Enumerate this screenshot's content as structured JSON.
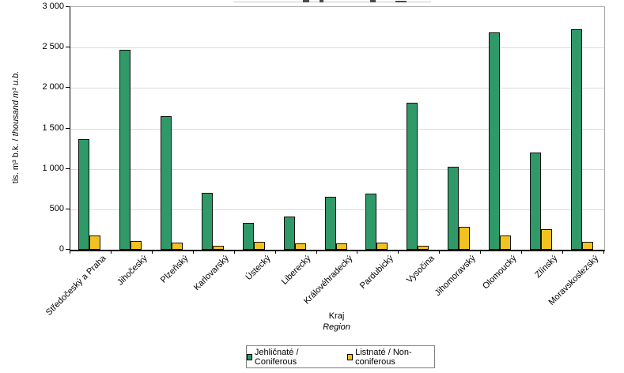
{
  "chart_data": {
    "type": "bar",
    "title_note": "",
    "categories": [
      "Středočeský a Praha",
      "Jihočeský",
      "Plzeňský",
      "Karlovarský",
      "Ústecký",
      "Liberecký",
      "Královéhradecký",
      "Pardubický",
      "Vysočina",
      "Jihomoravský",
      "Olomoucký",
      "Zlínský",
      "Moravskoslezský"
    ],
    "series": [
      {
        "name": "Jehličnaté / Coniferous",
        "color": "#2F9968",
        "values": [
          1370,
          2470,
          1650,
          700,
          330,
          410,
          650,
          690,
          1820,
          1030,
          2690,
          1200,
          2730
        ]
      },
      {
        "name": "Listnaté / Non-coniferous",
        "color": "#F2C320",
        "values": [
          175,
          110,
          85,
          50,
          100,
          80,
          80,
          90,
          50,
          280,
          180,
          255,
          95
        ]
      }
    ],
    "xlabel": "Kraj",
    "xlabel_en": "Region",
    "ylabel": "tis. m³ b.k. /",
    "ylabel_en": "thousand m³ u.b.",
    "ylim": [
      0,
      3000
    ],
    "ytick_step": 500,
    "ytick_labels": [
      "0",
      "500",
      "1 000",
      "1 500",
      "2 000",
      "2 500",
      "3 000"
    ],
    "grid": true,
    "legend_position": "bottom"
  },
  "colors": {
    "gridline": "#DCDCDC",
    "axis": "#000000",
    "plot_border": "#A6A6A6",
    "legend_border": "#7F7F7F"
  }
}
